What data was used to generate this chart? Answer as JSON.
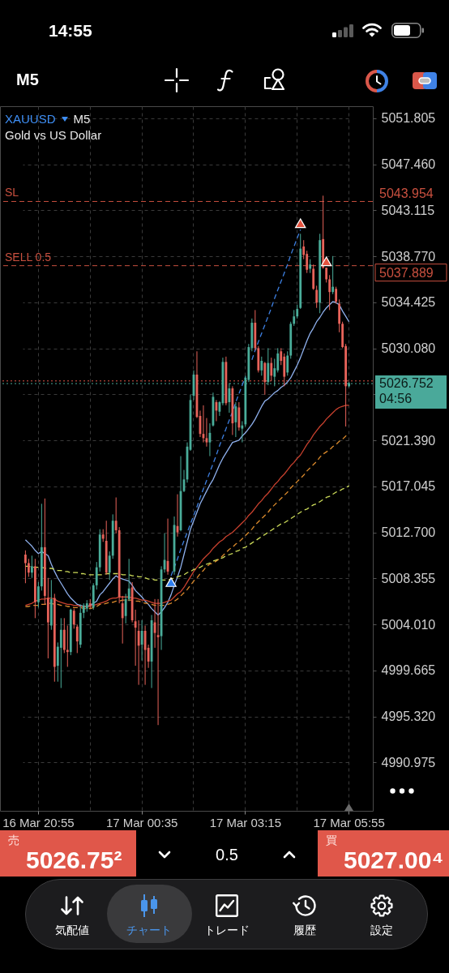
{
  "chart_data": {
    "type": "candlestick",
    "title": "XAUUSD",
    "subtitle": "Gold vs US Dollar",
    "categories": [
      null,
      null,
      null,
      null,
      "16 Mar 20:55",
      null,
      null,
      null,
      null,
      null,
      null,
      null,
      null,
      null,
      null,
      null,
      null,
      null,
      null,
      null,
      null,
      null,
      null,
      null,
      null,
      null,
      null,
      null,
      null,
      null,
      null,
      null,
      null,
      null,
      null,
      null,
      "17 Mar 00:35",
      null,
      null,
      null,
      null,
      null,
      null,
      null,
      null,
      null,
      null,
      null,
      null,
      null,
      null,
      null,
      null,
      null,
      null,
      null,
      null,
      null,
      null,
      null,
      null,
      null,
      null,
      null,
      null,
      null,
      null,
      null,
      "17 Mar 03:15",
      null,
      null,
      null,
      null,
      null,
      null,
      null,
      null,
      null,
      null,
      null,
      null,
      null,
      null,
      null,
      null,
      null,
      null,
      null,
      null,
      null,
      null,
      null,
      null,
      null,
      null,
      null,
      null,
      null,
      null,
      null,
      "17 Mar 05:55"
    ],
    "ohlc": [
      [
        5010.6,
        5011.0,
        5007.9,
        5009.8
      ],
      [
        5009.8,
        5010.2,
        5008.5,
        5008.9
      ],
      [
        5008.9,
        5010.5,
        5008.4,
        5009.5
      ],
      [
        5009.5,
        5010.2,
        5004.6,
        5006.1
      ],
      [
        5006.1,
        5008.0,
        5005.6,
        5007.6
      ],
      [
        5007.6,
        5015.4,
        5007.2,
        5011.3
      ],
      [
        5011.3,
        5015.9,
        5005.9,
        5006.7
      ],
      [
        5006.5,
        5008.4,
        5000.8,
        5004.2
      ],
      [
        5003.9,
        5008.2,
        5003.5,
        5006.4
      ],
      [
        5006.5,
        5006.9,
        4998.6,
        5000.0
      ],
      [
        5000.1,
        5002.3,
        4998.6,
        5001.9
      ],
      [
        5001.8,
        5004.6,
        4998.0,
        5003.5
      ],
      [
        5003.5,
        5004.6,
        5001.3,
        5001.6
      ],
      [
        5001.6,
        5003.9,
        5000.0,
        5001.4
      ],
      [
        5001.4,
        5005.5,
        5001.1,
        5005.4
      ],
      [
        5005.3,
        5005.5,
        5003.6,
        5004.0
      ],
      [
        5003.8,
        5004.0,
        5001.3,
        5002.4
      ],
      [
        5002.1,
        5005.9,
        5001.8,
        5005.1
      ],
      [
        5005.1,
        5006.0,
        5004.6,
        5005.8
      ],
      [
        5005.5,
        5006.3,
        5005.2,
        5006.0
      ],
      [
        5006.0,
        5006.4,
        5005.5,
        5005.8
      ],
      [
        5005.6,
        5007.9,
        5005.4,
        5007.7
      ],
      [
        5007.7,
        5009.9,
        5007.3,
        5009.4
      ],
      [
        5009.4,
        5013.0,
        5009.0,
        5012.5
      ],
      [
        5012.5,
        5013.0,
        5011.8,
        5012.1
      ],
      [
        5011.9,
        5013.8,
        5008.7,
        5008.9
      ],
      [
        5008.9,
        5010.9,
        5008.2,
        5010.5
      ],
      [
        5010.5,
        5014.4,
        5010.2,
        5013.8
      ],
      [
        5013.8,
        5016.0,
        5012.6,
        5012.9
      ],
      [
        5012.9,
        5013.2,
        5006.0,
        5006.6
      ],
      [
        5006.0,
        5006.7,
        5002.2,
        5004.6
      ],
      [
        5004.8,
        5006.9,
        5004.1,
        5006.4
      ],
      [
        5006.4,
        5010.2,
        5006.2,
        5007.4
      ],
      [
        5007.5,
        5008.0,
        5004.2,
        5004.4
      ],
      [
        5004.3,
        5005.4,
        5000.1,
        5003.7
      ],
      [
        5003.4,
        5004.4,
        4998.3,
        5002.0
      ],
      [
        5002.1,
        5004.4,
        5000.6,
        5003.4
      ],
      [
        5003.4,
        5003.9,
        4998.3,
        5001.6
      ],
      [
        5001.8,
        5002.1,
        4999.9,
        5000.5
      ],
      [
        5000.5,
        5004.9,
        4998.0,
        5004.4
      ],
      [
        5004.2,
        5006.4,
        5001.8,
        5003.2
      ],
      [
        5003.0,
        5006.4,
        4994.5,
        5002.8
      ],
      [
        5002.9,
        5009.5,
        5001.6,
        5009.2
      ],
      [
        5009.2,
        5012.6,
        5008.9,
        5010.1
      ],
      [
        5010.0,
        5014.0,
        5008.7,
        5009.0
      ],
      null,
      [
        5009.0,
        5014.2,
        5008.7,
        5013.4
      ],
      [
        5013.3,
        5016.3,
        5012.3,
        5012.7
      ],
      [
        5012.9,
        5019.9,
        5012.8,
        5016.6
      ],
      [
        5016.6,
        5018.6,
        5016.5,
        5017.7
      ],
      [
        5017.7,
        5021.2,
        5017.4,
        5020.8
      ],
      [
        5020.5,
        5025.7,
        5020.4,
        5025.2
      ],
      [
        5025.6,
        5028.0,
        5025.2,
        5027.6
      ],
      [
        5027.6,
        5029.8,
        5023.5,
        5023.6
      ],
      [
        5023.7,
        5024.2,
        5021.7,
        5022.0
      ],
      [
        5022.0,
        5024.7,
        5021.2,
        5021.6
      ],
      [
        5021.6,
        5023.5,
        5020.8,
        5021.2
      ],
      [
        5021.2,
        5023.0,
        5019.9,
        5022.1
      ],
      [
        5022.8,
        5025.9,
        5022.7,
        5025.5
      ],
      [
        5025.0,
        5025.2,
        5023.2,
        5024.2
      ],
      [
        5024.1,
        5025.1,
        5023.7,
        5025.0
      ],
      [
        5024.9,
        5029.2,
        5024.7,
        5028.8
      ],
      [
        5028.8,
        5029.3,
        5024.7,
        5024.9
      ],
      [
        5025.0,
        5026.8,
        5024.0,
        5026.3
      ],
      [
        5026.3,
        5026.5,
        5021.9,
        5023.0
      ],
      [
        5023.1,
        5025.0,
        5021.7,
        5024.6
      ],
      [
        5024.5,
        5025.0,
        5022.3,
        5022.6
      ],
      [
        5022.5,
        5023.2,
        5021.2,
        5022.8
      ],
      [
        5022.9,
        5027.5,
        5022.7,
        5027.3
      ],
      [
        5027.1,
        5030.5,
        5026.9,
        5030.2
      ],
      [
        5030.1,
        5032.9,
        5029.8,
        5032.5
      ],
      [
        5032.5,
        5033.7,
        5029.9,
        5030.1
      ],
      [
        5030.1,
        5030.3,
        5027.8,
        5028.0
      ],
      [
        5028.0,
        5029.3,
        5027.5,
        5028.9
      ],
      [
        5028.7,
        5028.8,
        5025.7,
        5026.9
      ],
      [
        5026.9,
        5030.1,
        5026.6,
        5028.7
      ],
      [
        5028.7,
        5029.2,
        5027.0,
        5027.5
      ],
      [
        5027.4,
        5029.1,
        5026.5,
        5028.2
      ],
      [
        5028.0,
        5030.1,
        5027.8,
        5029.6
      ],
      [
        5029.8,
        5030.1,
        5028.5,
        5028.9
      ],
      [
        5029.3,
        5029.6,
        5026.5,
        5027.4
      ],
      [
        5027.8,
        5029.8,
        5027.5,
        5029.4
      ],
      [
        5029.4,
        5032.6,
        5029.1,
        5032.4
      ],
      [
        5032.4,
        5033.7,
        5032.2,
        5033.1
      ],
      [
        5033.1,
        5034.2,
        5032.9,
        5033.8
      ],
      [
        5033.9,
        5040.9,
        5033.8,
        5039.5
      ],
      [
        5039.7,
        5040.3,
        5038.5,
        5038.9
      ],
      [
        5039.0,
        5039.3,
        5037.2,
        5037.5
      ],
      [
        5037.6,
        5038.5,
        5037.2,
        5038.0
      ],
      [
        5037.6,
        5038.0,
        5035.6,
        5035.7
      ],
      [
        5035.6,
        5036.0,
        5033.9,
        5034.4
      ],
      [
        5034.4,
        5040.9,
        5033.4,
        5040.3
      ],
      [
        5040.4,
        5044.5,
        5037.6,
        5037.7
      ],
      [
        5037.7,
        5037.7,
        5036.3,
        5036.6
      ],
      [
        5036.6,
        5037.0,
        5033.7,
        5035.4
      ],
      [
        5035.4,
        5038.8,
        5035.2,
        5035.9
      ],
      [
        5035.7,
        5035.9,
        5034.3,
        5034.5
      ],
      [
        5034.3,
        5034.7,
        5031.6,
        5032.4
      ],
      [
        5032.4,
        5032.6,
        5030.1,
        5030.2
      ],
      [
        5030.3,
        5030.5,
        5022.7,
        5026.5
      ],
      [
        5026.5,
        5026.9,
        5026.4,
        5026.8
      ]
    ],
    "colors": [
      "#e8635a",
      "#e8635a",
      "#4aad9a",
      "#e8635a",
      "#4aad9a",
      "#4aad9a",
      "#e8635a",
      "#e8635a",
      "#4aad9a",
      "#e8635a",
      "#4aad9a",
      "#4aad9a",
      "#e8635a",
      "#e8635a",
      "#4aad9a",
      "#e8635a",
      "#e8635a",
      "#4aad9a",
      "#4aad9a",
      "#4aad9a",
      "#e8635a",
      "#4aad9a",
      "#4aad9a",
      "#4aad9a",
      "#e8635a",
      "#e8635a",
      "#4aad9a",
      "#4aad9a",
      "#e8635a",
      "#e8635a",
      "#e8635a",
      "#4aad9a",
      "#4aad9a",
      "#e8635a",
      "#e8635a",
      "#e8635a",
      "#4aad9a",
      "#e8635a",
      "#e8635a",
      "#4aad9a",
      "#e8635a",
      "#e8635a",
      "#4aad9a",
      "#4aad9a",
      "#e8635a",
      null,
      "#4aad9a",
      "#e8635a",
      "#4aad9a",
      "#4aad9a",
      "#4aad9a",
      "#4aad9a",
      "#4aad9a",
      "#e8635a",
      "#e8635a",
      "#e8635a",
      "#e8635a",
      "#4aad9a",
      "#4aad9a",
      "#e8635a",
      "#4aad9a",
      "#4aad9a",
      "#e8635a",
      "#4aad9a",
      "#e8635a",
      "#4aad9a",
      "#e8635a",
      "#4aad9a",
      "#4aad9a",
      "#4aad9a",
      "#4aad9a",
      "#e8635a",
      "#e8635a",
      "#4aad9a",
      "#e8635a",
      "#4aad9a",
      "#e8635a",
      "#4aad9a",
      "#4aad9a",
      "#e8635a",
      "#e8635a",
      "#4aad9a",
      "#4aad9a",
      "#4aad9a",
      "#4aad9a",
      "#4aad9a",
      "#e8635a",
      "#e8635a",
      "#4aad9a",
      "#e8635a",
      "#e8635a",
      "#4aad9a",
      "#e8635a",
      "#e8635a",
      "#e8635a",
      "#4aad9a",
      "#e8635a",
      "#e8635a",
      "#e8635a",
      "#e8635a",
      "#4aad9a"
    ],
    "series": [
      {
        "type": "line",
        "color": "#8fb1ee",
        "line_style": "solid",
        "values": [
          5012.0,
          5011.7,
          5011.4,
          5011.0,
          5010.7,
          5010.9,
          5010.7,
          5010.5,
          5009.7,
          5009.0,
          5008.4,
          5007.9,
          5007.4,
          5006.9,
          5006.5,
          5006.2,
          5005.9,
          5005.8,
          5005.7,
          5005.7,
          5005.8,
          5006.0,
          5006.2,
          5006.8,
          5007.1,
          5007.5,
          5007.9,
          5008.3,
          5008.6,
          5008.4,
          5008.3,
          5008.2,
          5008.1,
          5007.7,
          5007.2,
          5006.9,
          5006.6,
          5006.2,
          5005.9,
          5005.5,
          5005.2,
          5004.9,
          5005.2,
          5005.6,
          5006.1,
          5006.8,
          5007.7,
          5008.5,
          5009.4,
          5010.6,
          5011.8,
          5013.0,
          5013.8,
          5014.6,
          5015.4,
          5016.0,
          5016.6,
          5017.2,
          5017.7,
          5018.4,
          5019.1,
          5019.7,
          5020.2,
          5020.7,
          5021.2,
          5021.3,
          5021.4,
          5021.8,
          5022.1,
          5022.5,
          5022.9,
          5023.4,
          5024.0,
          5024.6,
          5025.1,
          5025.3,
          5025.6,
          5025.9,
          5026.1,
          5026.4,
          5026.6,
          5026.9,
          5027.3,
          5027.9,
          5028.5,
          5029.2,
          5030.0,
          5030.8,
          5031.5,
          5032.0,
          5032.6,
          5033.0,
          5033.5,
          5033.9,
          5034.2,
          5034.5,
          5034.4,
          5034.2,
          5033.6,
          5033.1,
          5032.6
        ]
      },
      {
        "type": "line",
        "color": "#c8412e",
        "line_style": "solid",
        "values": [
          5005.8,
          5005.9,
          5006.0,
          5006.2,
          5006.3,
          5006.4,
          5006.4,
          5006.5,
          5006.5,
          5006.4,
          5006.2,
          5006.1,
          5006.0,
          5005.9,
          5005.9,
          5005.8,
          5005.8,
          5005.7,
          5005.7,
          5005.7,
          5005.7,
          5005.8,
          5005.9,
          5006.0,
          5006.1,
          5006.2,
          5006.4,
          5006.5,
          5006.5,
          5006.6,
          5006.6,
          5006.6,
          5006.6,
          5006.5,
          5006.5,
          5006.4,
          5006.3,
          5006.3,
          5006.2,
          5006.1,
          5006.0,
          5006.0,
          5006.0,
          5006.1,
          5006.2,
          5006.3,
          5006.6,
          5006.9,
          5007.1,
          5007.5,
          5008.0,
          5008.5,
          5009.0,
          5009.4,
          5009.8,
          5010.2,
          5010.5,
          5010.8,
          5011.2,
          5011.5,
          5011.8,
          5012.0,
          5012.3,
          5012.5,
          5012.7,
          5013.0,
          5013.3,
          5013.6,
          5013.9,
          5014.3,
          5014.6,
          5015.0,
          5015.4,
          5015.7,
          5016.1,
          5016.4,
          5016.8,
          5017.2,
          5017.5,
          5017.9,
          5018.2,
          5018.6,
          5019.0,
          5019.3,
          5019.7,
          5020.0,
          5020.5,
          5021.0,
          5021.4,
          5021.9,
          5022.3,
          5022.7,
          5023.0,
          5023.4,
          5023.7,
          5024.0,
          5024.3,
          5024.5,
          5024.6,
          5024.7,
          5024.7
        ]
      },
      {
        "type": "line",
        "color": "#d9892c",
        "line_style": "dashed",
        "values": [
          5005.7,
          5005.7,
          5005.8,
          5005.8,
          5005.8,
          5005.9,
          5005.9,
          5006.0,
          5006.0,
          5005.9,
          5005.9,
          5005.8,
          5005.8,
          5005.7,
          5005.7,
          5005.6,
          5005.6,
          5005.6,
          5005.5,
          5005.5,
          5005.5,
          5005.6,
          5005.7,
          5005.9,
          5005.9,
          5006.0,
          5006.1,
          5006.1,
          5006.2,
          5006.2,
          5006.3,
          5006.3,
          5006.3,
          5006.3,
          5006.2,
          5006.2,
          5006.1,
          5006.0,
          5006.0,
          5005.9,
          5005.8,
          5005.8,
          5005.8,
          5005.8,
          5005.9,
          5006.0,
          5006.2,
          5006.4,
          5006.7,
          5007.0,
          5007.3,
          5007.7,
          5008.1,
          5008.4,
          5008.8,
          5009.1,
          5009.5,
          5009.7,
          5009.8,
          5010.0,
          5010.2,
          5010.5,
          5010.8,
          5011.1,
          5011.3,
          5011.6,
          5011.8,
          5012.1,
          5012.4,
          5012.7,
          5013.0,
          5013.4,
          5013.7,
          5014.0,
          5014.3,
          5014.6,
          5015.0,
          5015.3,
          5015.6,
          5015.9,
          5016.2,
          5016.5,
          5016.9,
          5017.2,
          5017.5,
          5017.8,
          5018.1,
          5018.5,
          5018.8,
          5019.1,
          5019.4,
          5019.8,
          5020.1,
          5020.3,
          5020.5,
          5020.8,
          5021.0,
          5021.3,
          5021.5,
          5021.8,
          5022.0
        ]
      },
      {
        "type": "line",
        "color": "#cddc5a",
        "line_style": "dashed",
        "values": [
          5009.5,
          5009.5,
          5009.4,
          5009.4,
          5009.4,
          5009.4,
          5009.3,
          5009.3,
          5009.3,
          5009.2,
          5009.1,
          5009.1,
          5009.0,
          5009.0,
          5008.9,
          5008.9,
          5008.9,
          5008.8,
          5008.8,
          5008.7,
          5008.7,
          5008.7,
          5008.7,
          5008.7,
          5008.7,
          5008.8,
          5008.8,
          5008.8,
          5008.8,
          5008.8,
          5008.7,
          5008.7,
          5008.7,
          5008.6,
          5008.6,
          5008.5,
          5008.5,
          5008.4,
          5008.3,
          5008.3,
          5008.2,
          5008.2,
          5008.2,
          5008.2,
          5008.2,
          5008.3,
          5008.4,
          5008.5,
          5008.6,
          5008.7,
          5008.9,
          5009.0,
          5009.2,
          5009.3,
          5009.4,
          5009.6,
          5009.7,
          5009.8,
          5010.0,
          5010.1,
          5010.2,
          5010.3,
          5010.5,
          5010.6,
          5010.7,
          5010.9,
          5011.0,
          5011.2,
          5011.3,
          5011.5,
          5011.7,
          5011.9,
          5012.1,
          5012.3,
          5012.5,
          5012.7,
          5012.9,
          5013.1,
          5013.3,
          5013.5,
          5013.6,
          5013.8,
          5014.0,
          5014.2,
          5014.4,
          5014.6,
          5014.8,
          5014.9,
          5015.1,
          5015.3,
          5015.4,
          5015.6,
          5015.8,
          5016.0,
          5016.1,
          5016.3,
          5016.5,
          5016.6,
          5016.8,
          5016.9,
          5017.1
        ]
      },
      {
        "type": "line",
        "color": "#3d7fe0",
        "line_style": "dashed",
        "values": [
          null,
          null,
          null,
          null,
          null,
          null,
          null,
          null,
          null,
          null,
          null,
          null,
          null,
          null,
          null,
          null,
          null,
          null,
          null,
          null,
          null,
          null,
          null,
          null,
          null,
          null,
          null,
          null,
          null,
          null,
          null,
          null,
          null,
          null,
          null,
          null,
          null,
          null,
          null,
          null,
          null,
          null,
          null,
          null,
          null,
          5008.6,
          5009.4,
          5010.2,
          5011.1,
          5011.9,
          5012.7,
          5013.5,
          5014.3,
          5015.1,
          5016.0,
          5016.8,
          5017.6,
          5018.4,
          5019.2,
          5020.0,
          5020.9,
          5021.7,
          5022.5,
          5023.3,
          5024.1,
          5025.0,
          5025.8,
          5026.6,
          5027.4,
          null,
          5029.0,
          5029.9,
          5030.7,
          5031.5,
          5032.3,
          5033.1,
          5033.9,
          5034.8,
          5035.6,
          5036.4,
          5037.2,
          5038.0,
          5038.9,
          5039.7,
          5040.5,
          5041.3,
          null,
          null,
          null,
          null,
          null,
          null,
          null,
          null,
          null,
          null,
          null,
          null,
          null,
          null,
          null
        ]
      },
      {
        "type": "scatter",
        "color": "#2f7ff0",
        "marker": "triangle",
        "values": [
          null,
          null,
          null,
          null,
          null,
          null,
          null,
          null,
          null,
          null,
          null,
          null,
          null,
          null,
          null,
          null,
          null,
          null,
          null,
          null,
          null,
          null,
          null,
          null,
          null,
          null,
          null,
          null,
          null,
          null,
          null,
          null,
          null,
          null,
          null,
          null,
          null,
          null,
          null,
          null,
          null,
          null,
          null,
          null,
          null,
          5008.0,
          null,
          null,
          null,
          null,
          null,
          null,
          null,
          null,
          null,
          null,
          null,
          null,
          null,
          null,
          null,
          null,
          null,
          null,
          null,
          null,
          null,
          null,
          null,
          null,
          null,
          null,
          null,
          null,
          null,
          null,
          null,
          null,
          null,
          null,
          null,
          null,
          null,
          null,
          null,
          null,
          null,
          null,
          null,
          null,
          null,
          null,
          null,
          null,
          null,
          null,
          null,
          null,
          null,
          null,
          null
        ]
      },
      {
        "type": "scatter",
        "color": "#e4533f",
        "marker": "triangle",
        "values": [
          null,
          null,
          null,
          null,
          null,
          null,
          null,
          null,
          null,
          null,
          null,
          null,
          null,
          null,
          null,
          null,
          null,
          null,
          null,
          null,
          null,
          null,
          null,
          null,
          null,
          null,
          null,
          null,
          null,
          null,
          null,
          null,
          null,
          null,
          null,
          null,
          null,
          null,
          null,
          null,
          null,
          null,
          null,
          null,
          null,
          null,
          null,
          null,
          null,
          null,
          null,
          null,
          null,
          null,
          null,
          null,
          null,
          null,
          null,
          null,
          null,
          null,
          null,
          null,
          null,
          null,
          null,
          null,
          null,
          null,
          null,
          null,
          null,
          null,
          null,
          null,
          null,
          null,
          null,
          null,
          null,
          null,
          null,
          null,
          null,
          5041.9,
          null,
          null,
          null,
          null,
          null,
          null,
          null,
          5038.3,
          null,
          null,
          null,
          null,
          null,
          null,
          null
        ]
      }
    ],
    "ylim": [
      4986.4,
      5052.95
    ],
    "yticks": [
      4990.975,
      {
        "value": 4995.32,
        "label": "4995.320"
      },
      4999.665,
      {
        "value": 5004.01,
        "label": "5004.010"
      },
      5008.355,
      {
        "value": 5012.7,
        "label": "5012.700"
      },
      5017.045,
      {
        "value": 5021.39,
        "label": "5021.390"
      },
      {
        "value": 5025.735,
        "label": null
      },
      {
        "value": 5030.08,
        "label": "5030.080"
      },
      5034.425,
      {
        "value": 5038.77,
        "label": "5038.770"
      },
      5043.115,
      {
        "value": 5047.46,
        "label": "5047.460"
      },
      5051.805
    ],
    "grid": true,
    "ref_lines": [
      {
        "axis": "y",
        "value": 5043.954,
        "label": "SL",
        "color": "#c9503f",
        "line_style": "dashed"
      },
      {
        "axis": "y",
        "value": 5037.889,
        "label": "SELL 0.5",
        "color": "#c9503f",
        "line_style": "dashed"
      },
      {
        "axis": "y",
        "value": 5026.752,
        "color": "#4aa99a",
        "line_style": "dotted"
      },
      {
        "axis": "y",
        "value": 5027.004,
        "color": "#e0594b",
        "line_style": "dotted"
      }
    ],
    "annotations": [
      "14:55",
      "M5",
      "M5",
      "04:56",
      "売",
      "5026.75²",
      "0.5",
      "買",
      "5027.00⁴",
      "気配値",
      "チャート",
      "トレード",
      "履歴",
      "設定",
      "5043.954",
      "5037.889",
      "5026.752"
    ]
  }
}
